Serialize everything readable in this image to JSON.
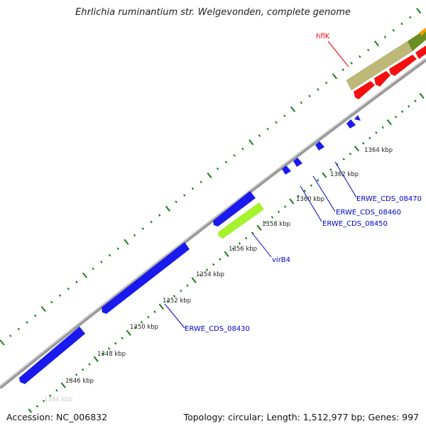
{
  "title": "Ehrlichia ruminantium str. Welgevonden, complete genome",
  "footer": {
    "accession": "Accession: NC_006832",
    "summary": "Topology: circular; Length: 1,512,977 bp; Genes: 997"
  },
  "tick_labels": [
    "1344 kbp",
    "1346 kbp",
    "1348 kbp",
    "1350 kbp",
    "1352 kbp",
    "1354 kbp",
    "1356 kbp",
    "1358 kbp",
    "1360 kbp",
    "1362 kbp",
    "1364 kbp"
  ],
  "gene_labels": {
    "g08430": "ERWE_CDS_08430",
    "virB4": "virB4",
    "g08450": "ERWE_CDS_08450",
    "g08460": "ERWE_CDS_08460",
    "g08470": "ERWE_CDS_08470",
    "hflK": "hflK"
  },
  "colors": {
    "cds_blue": "#1a1aee",
    "virB4": "#a6f22e",
    "hflK": "#bdb878",
    "red": "#f41010",
    "olive": "#6b8e23",
    "orange": "#ff9900",
    "tick": "#1a7a1a",
    "label_blue": "#0000cc",
    "label_red": "#ee0000"
  }
}
